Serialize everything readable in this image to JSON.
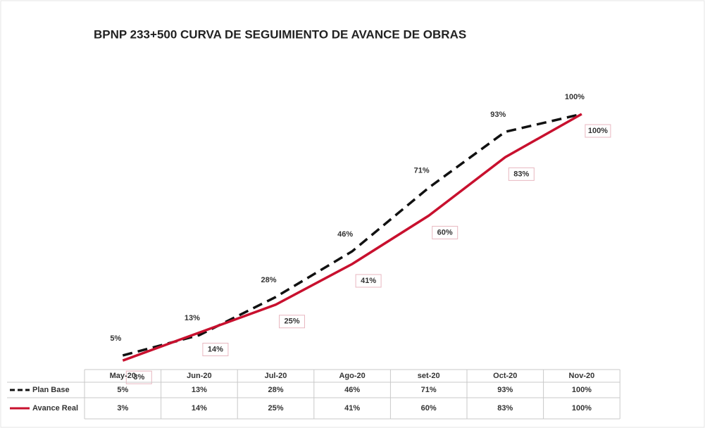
{
  "chart_data": {
    "type": "line",
    "title": "BPNP 233+500 CURVA DE SEGUIMIENTO DE AVANCE DE OBRAS",
    "categories": [
      "May-20",
      "Jun-20",
      "Jul-20",
      "Ago-20",
      "set-20",
      "Oct-20",
      "Nov-20"
    ],
    "series": [
      {
        "name": "Plan Base",
        "color": "#111111",
        "dash": true,
        "values": [
          5,
          13,
          28,
          46,
          71,
          93,
          100
        ],
        "value_labels": [
          "5%",
          "13%",
          "28%",
          "46%",
          "71%",
          "93%",
          "100%"
        ]
      },
      {
        "name": "Avance Real",
        "color": "#c8102e",
        "dash": false,
        "values": [
          3,
          14,
          25,
          41,
          60,
          83,
          100
        ],
        "value_labels": [
          "3%",
          "14%",
          "25%",
          "41%",
          "60%",
          "83%",
          "100%"
        ]
      }
    ],
    "data_table": true
  }
}
